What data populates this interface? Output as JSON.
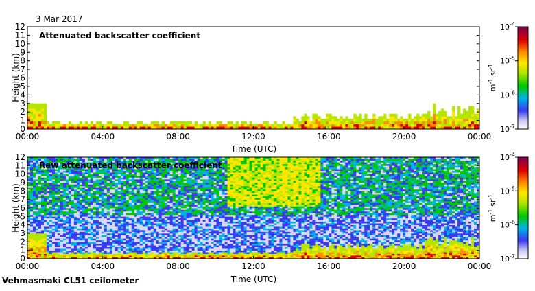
{
  "date_label": "3 Mar 2017",
  "footer_label": "Vehmasmaki CL51 ceilometer",
  "chart_data": [
    {
      "type": "heatmap",
      "title": "Attenuated backscatter coefficient",
      "xlabel": "Time (UTC)",
      "ylabel": "Height (km)",
      "x_ticks": [
        "00:00",
        "04:00",
        "08:00",
        "12:00",
        "16:00",
        "20:00",
        "00:00"
      ],
      "y_ticks": [
        "0",
        "1",
        "2",
        "3",
        "4",
        "5",
        "6",
        "7",
        "8",
        "9",
        "10",
        "11",
        "12"
      ],
      "ylim": [
        0,
        12
      ],
      "xlim_hours": [
        0,
        24
      ],
      "colorbar": {
        "ticks": [
          "10-7",
          "10-6",
          "10-5",
          "10-4"
        ],
        "label": "m-1 sr-1",
        "scale": "log",
        "range": [
          1e-07,
          0.0001
        ]
      },
      "grid": false
    },
    {
      "type": "heatmap",
      "title": "Raw attenuated backscatter coefficient",
      "xlabel": "Time (UTC)",
      "ylabel": "Height (km)",
      "x_ticks": [
        "00:00",
        "04:00",
        "08:00",
        "12:00",
        "16:00",
        "20:00",
        "00:00"
      ],
      "y_ticks": [
        "0",
        "1",
        "2",
        "3",
        "4",
        "5",
        "6",
        "7",
        "8",
        "9",
        "10",
        "11",
        "12"
      ],
      "ylim": [
        0,
        12
      ],
      "xlim_hours": [
        0,
        24
      ],
      "colorbar": {
        "ticks": [
          "10-7",
          "10-6",
          "10-5",
          "10-4"
        ],
        "label": "m-1 sr-1",
        "scale": "log",
        "range": [
          1e-07,
          0.0001
        ]
      },
      "grid": false
    }
  ]
}
